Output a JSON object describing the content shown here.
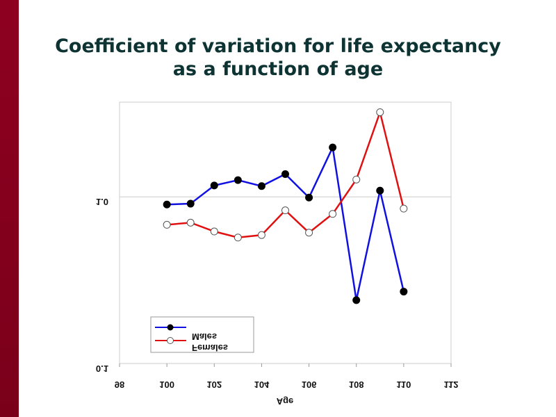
{
  "slide": {
    "title_line1": "Coefficient of variation for life expectancy",
    "title_line2": "as a function of age"
  },
  "chart_data": {
    "type": "line",
    "title": "Coefficient of variation for life expectancy as a function of age",
    "xlabel": "Age",
    "ylabel": "",
    "xlim": [
      98,
      112
    ],
    "ylim": [
      0.1,
      3.7
    ],
    "yscale": "log",
    "x_ticks": [
      98,
      100,
      102,
      104,
      106,
      108,
      110,
      112
    ],
    "y_ticks": [
      "0.1",
      "1.0"
    ],
    "grid": "horizontal at 1.0",
    "legend_position": "bottom-left",
    "x": [
      100,
      101,
      102,
      103,
      104,
      105,
      106,
      107,
      108,
      109,
      110
    ],
    "series": [
      {
        "name": "Males",
        "color": "#1010e0",
        "marker": "filled",
        "values": [
          0.9,
          0.91,
          1.17,
          1.26,
          1.16,
          1.37,
          0.99,
          1.98,
          0.24,
          1.09,
          0.27
        ]
      },
      {
        "name": "Females",
        "color": "#e01010",
        "marker": "open",
        "values": [
          0.68,
          0.7,
          0.62,
          0.57,
          0.59,
          0.83,
          0.61,
          0.79,
          1.27,
          3.22,
          0.85
        ]
      }
    ]
  }
}
